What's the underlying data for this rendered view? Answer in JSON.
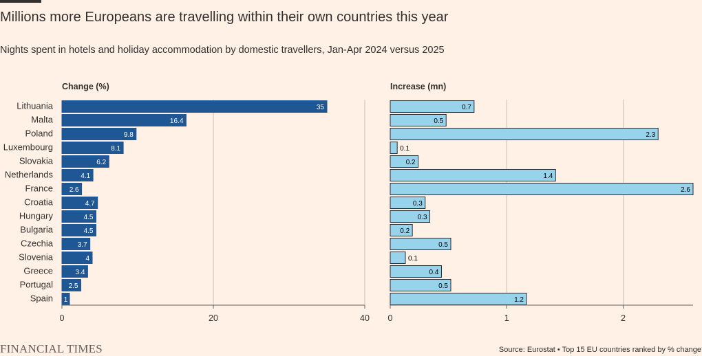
{
  "header": {
    "title": "Millions more Europeans are travelling within their own countries this year",
    "subtitle": "Nights spent in hotels and holiday accommodation by domestic travellers, Jan-Apr 2024 versus 2025"
  },
  "footer": {
    "logo_text": "FINANCIAL TIMES",
    "source": "Source: Eurostat • Top 15 EU countries ranked by % change"
  },
  "colors": {
    "background": "#fff1e5",
    "left_bar": "#1f5694",
    "right_bar": "#97d3ea",
    "grid": "#ccc1b7",
    "text": "#33302e"
  },
  "chart_data": [
    {
      "type": "bar",
      "orientation": "horizontal",
      "title": "Change (%)",
      "categories": [
        "Lithuania",
        "Malta",
        "Poland",
        "Luxembourg",
        "Slovakia",
        "Netherlands",
        "France",
        "Croatia",
        "Hungary",
        "Bulgaria",
        "Czechia",
        "Slovenia",
        "Greece",
        "Portugal",
        "Spain"
      ],
      "values": [
        35,
        16.4,
        9.8,
        8.1,
        6.2,
        4.1,
        2.6,
        4.7,
        4.5,
        4.5,
        3.7,
        4,
        3.4,
        2.5,
        1
      ],
      "labels": [
        "35",
        "16.4",
        "9.8",
        "8.1",
        "6.2",
        "4.1",
        "2.6",
        "4.7",
        "4.5",
        "4.5",
        "3.7",
        "4",
        "3.4",
        "2.5",
        "1"
      ],
      "xlim": [
        0,
        40
      ],
      "ticks": [
        0,
        20,
        40
      ],
      "grid": true
    },
    {
      "type": "bar",
      "orientation": "horizontal",
      "title": "Increase (mn)",
      "categories": [
        "Lithuania",
        "Malta",
        "Poland",
        "Luxembourg",
        "Slovakia",
        "Netherlands",
        "France",
        "Croatia",
        "Hungary",
        "Bulgaria",
        "Czechia",
        "Slovenia",
        "Greece",
        "Portugal",
        "Spain"
      ],
      "values": [
        0.72,
        0.48,
        2.3,
        0.06,
        0.24,
        1.42,
        2.6,
        0.3,
        0.34,
        0.19,
        0.52,
        0.13,
        0.44,
        0.52,
        1.17
      ],
      "labels": [
        "0.7",
        "0.5",
        "2.3",
        "0.1",
        "0.2",
        "1.4",
        "2.6",
        "0.3",
        "0.3",
        "0.2",
        "0.5",
        "0.1",
        "0.4",
        "0.5",
        "1.2"
      ],
      "xlim": [
        0,
        2.6
      ],
      "ticks": [
        0,
        1,
        2
      ],
      "grid": true
    }
  ]
}
